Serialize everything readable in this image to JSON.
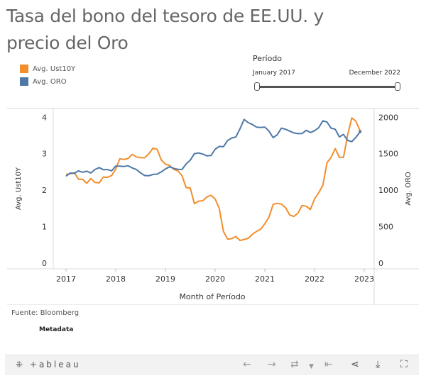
{
  "title": "Tasa del bono del tesoro de EE.UU. y precio del Oro",
  "legend": [
    {
      "label": "Avg. Ust10Y",
      "color": "#f28e2b"
    },
    {
      "label": "Avg. ORO",
      "color": "#4e79a7"
    }
  ],
  "filter": {
    "title": "Período",
    "start_label": "January 2017",
    "end_label": "December 2022"
  },
  "chart_data": {
    "type": "line",
    "xlabel": "Month of Período",
    "ylabel_left": "Avg. Ust10Y",
    "ylabel_right": "Avg. ORO",
    "x_ticks": [
      "2017",
      "2018",
      "2019",
      "2020",
      "2021",
      "2022",
      "2023"
    ],
    "y_left_ticks": [
      "0",
      "1",
      "2",
      "3",
      "4"
    ],
    "y_right_ticks": [
      "0",
      "500",
      "1000",
      "1500",
      "2000"
    ],
    "y_left_range": [
      0,
      4.2
    ],
    "y_right_range": [
      0,
      2100
    ],
    "x_range": [
      2017.0,
      2023.0
    ],
    "series": [
      {
        "name": "Avg. Ust10Y",
        "axis": "left",
        "color": "#f28e2b",
        "x": [
          2017.0,
          2017.083,
          2017.167,
          2017.25,
          2017.333,
          2017.417,
          2017.5,
          2017.583,
          2017.667,
          2017.75,
          2017.833,
          2017.917,
          2018.0,
          2018.083,
          2018.167,
          2018.25,
          2018.333,
          2018.417,
          2018.5,
          2018.583,
          2018.667,
          2018.75,
          2018.833,
          2018.917,
          2019.0,
          2019.083,
          2019.167,
          2019.25,
          2019.333,
          2019.417,
          2019.5,
          2019.583,
          2019.667,
          2019.75,
          2019.833,
          2019.917,
          2020.0,
          2020.083,
          2020.167,
          2020.25,
          2020.333,
          2020.417,
          2020.5,
          2020.583,
          2020.667,
          2020.75,
          2020.833,
          2020.917,
          2021.0,
          2021.083,
          2021.167,
          2021.25,
          2021.333,
          2021.417,
          2021.5,
          2021.583,
          2021.667,
          2021.75,
          2021.833,
          2021.917,
          2022.0,
          2022.083,
          2022.167,
          2022.25,
          2022.333,
          2022.417,
          2022.5,
          2022.583,
          2022.667,
          2022.75,
          2022.833,
          2022.917
        ],
        "values": [
          2.43,
          2.45,
          2.48,
          2.3,
          2.3,
          2.19,
          2.32,
          2.21,
          2.2,
          2.36,
          2.35,
          2.4,
          2.58,
          2.86,
          2.84,
          2.87,
          2.98,
          2.91,
          2.89,
          2.89,
          3.0,
          3.15,
          3.12,
          2.83,
          2.71,
          2.68,
          2.57,
          2.53,
          2.4,
          2.07,
          2.06,
          1.63,
          1.7,
          1.71,
          1.81,
          1.86,
          1.76,
          1.5,
          0.87,
          0.66,
          0.67,
          0.73,
          0.62,
          0.65,
          0.68,
          0.79,
          0.87,
          0.93,
          1.08,
          1.26,
          1.61,
          1.64,
          1.62,
          1.52,
          1.32,
          1.28,
          1.37,
          1.58,
          1.56,
          1.47,
          1.76,
          1.93,
          2.13,
          2.75,
          2.9,
          3.14,
          2.9,
          2.9,
          3.52,
          3.98,
          3.89,
          3.62
        ]
      },
      {
        "name": "Avg. ORO",
        "axis": "right",
        "color": "#4e79a7",
        "x": [
          2017.0,
          2017.083,
          2017.167,
          2017.25,
          2017.333,
          2017.417,
          2017.5,
          2017.583,
          2017.667,
          2017.75,
          2017.833,
          2017.917,
          2018.0,
          2018.083,
          2018.167,
          2018.25,
          2018.333,
          2018.417,
          2018.5,
          2018.583,
          2018.667,
          2018.75,
          2018.833,
          2018.917,
          2019.0,
          2019.083,
          2019.167,
          2019.25,
          2019.333,
          2019.417,
          2019.5,
          2019.583,
          2019.667,
          2019.75,
          2019.833,
          2019.917,
          2020.0,
          2020.083,
          2020.167,
          2020.25,
          2020.333,
          2020.417,
          2020.5,
          2020.583,
          2020.667,
          2020.75,
          2020.833,
          2020.917,
          2021.0,
          2021.083,
          2021.167,
          2021.25,
          2021.333,
          2021.417,
          2021.5,
          2021.583,
          2021.667,
          2021.75,
          2021.833,
          2021.917,
          2022.0,
          2022.083,
          2022.167,
          2022.25,
          2022.333,
          2022.417,
          2022.5,
          2022.583,
          2022.667,
          2022.75,
          2022.833,
          2022.917
        ],
        "values": [
          1192,
          1235,
          1230,
          1265,
          1245,
          1260,
          1236,
          1283,
          1310,
          1280,
          1282,
          1265,
          1330,
          1330,
          1325,
          1335,
          1305,
          1282,
          1237,
          1201,
          1198,
          1215,
          1220,
          1250,
          1291,
          1320,
          1300,
          1285,
          1283,
          1359,
          1412,
          1500,
          1510,
          1495,
          1470,
          1475,
          1560,
          1600,
          1595,
          1680,
          1715,
          1730,
          1840,
          1970,
          1925,
          1900,
          1865,
          1860,
          1865,
          1810,
          1720,
          1760,
          1850,
          1835,
          1810,
          1785,
          1775,
          1777,
          1820,
          1790,
          1815,
          1855,
          1950,
          1935,
          1850,
          1835,
          1730,
          1765,
          1680,
          1665,
          1725,
          1800
        ]
      }
    ]
  },
  "source": "Fuente: Bloomberg",
  "metadata": "Metadata",
  "toolbar": {
    "logo": "+ableau",
    "logo_mark": "⁜"
  }
}
